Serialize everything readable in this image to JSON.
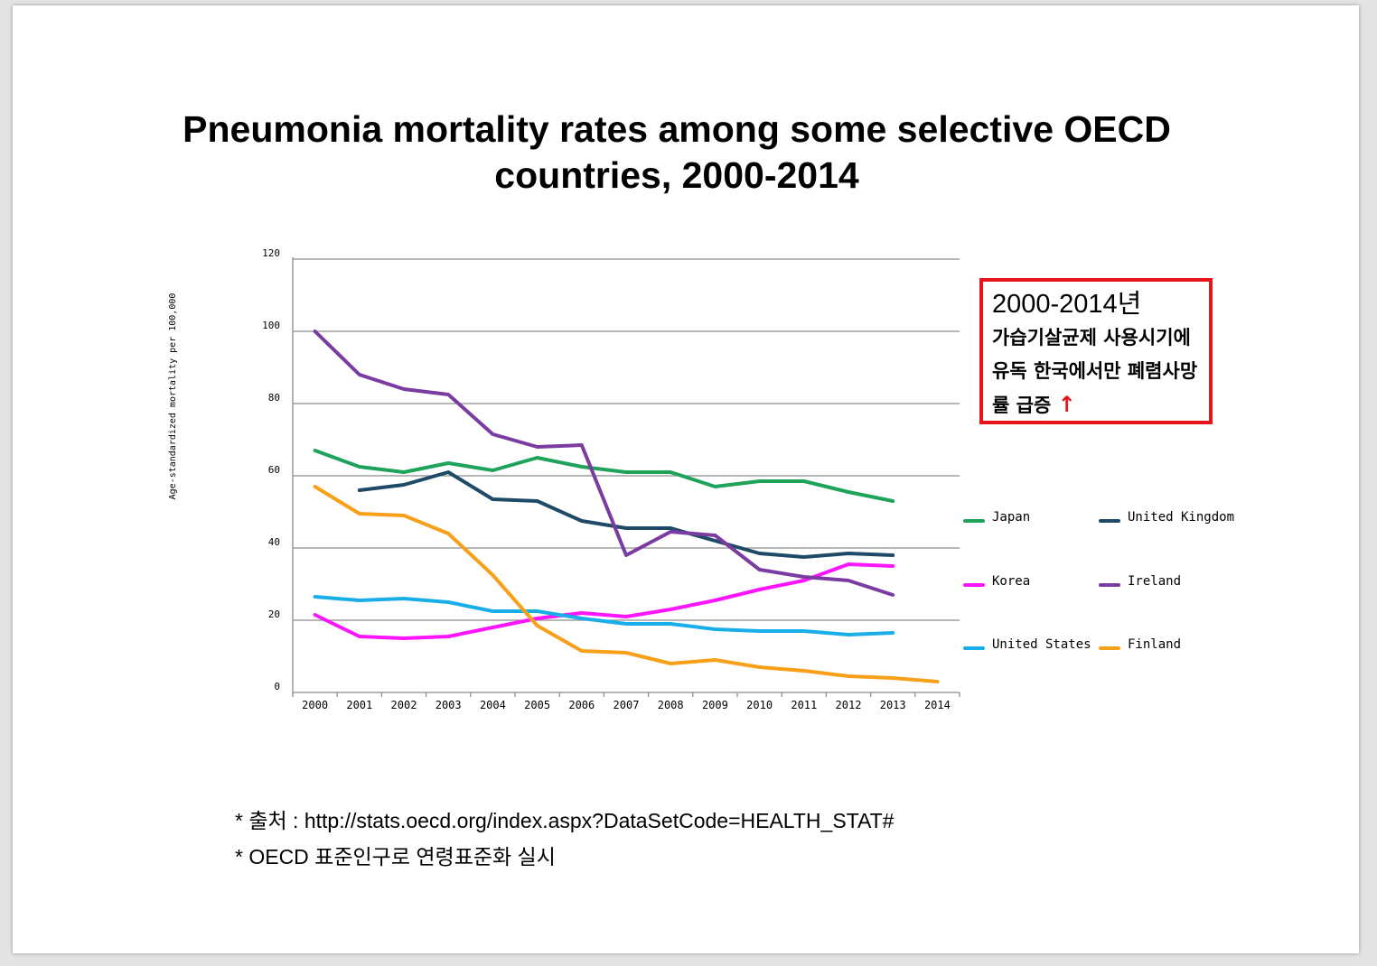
{
  "title_line1": "Pneumonia mortality rates among some selective OECD",
  "title_line2": "countries, 2000-2014",
  "annotation": {
    "year": "2000-2014년",
    "body": "가습기살균제 사용시기에 유독 한국에서만 폐렴사망률 급증",
    "arrow": "↑",
    "border_color": "#e8141b"
  },
  "footnotes": {
    "source": "* 출처 : http://stats.oecd.org/index.aspx?DataSetCode=HEALTH_STAT#",
    "note": "* OECD 표준인구로 연령표준화 실시"
  },
  "chart_data": {
    "type": "line",
    "ylabel": "Age-standardized mortality per 100,000",
    "xlabel": "",
    "x": [
      "2000",
      "2001",
      "2002",
      "2003",
      "2004",
      "2005",
      "2006",
      "2007",
      "2008",
      "2009",
      "2010",
      "2011",
      "2012",
      "2013",
      "2014"
    ],
    "yticks": [
      0,
      20,
      40,
      60,
      80,
      100,
      120
    ],
    "ylim": [
      0,
      120
    ],
    "grid": true,
    "legend_position": "right",
    "series": [
      {
        "name": "Japan",
        "color": "#1fa35a",
        "values": [
          67,
          62.5,
          61,
          63.5,
          61.5,
          65,
          62.5,
          61,
          61,
          57,
          58.5,
          58.5,
          55.5,
          53,
          null
        ]
      },
      {
        "name": "United Kingdom",
        "color": "#1e4a68",
        "values": [
          null,
          56,
          57.5,
          61,
          53.5,
          53,
          47.5,
          45.5,
          45.5,
          42,
          38.5,
          37.5,
          38.5,
          38,
          null
        ]
      },
      {
        "name": "Korea",
        "color": "#ff14ff",
        "values": [
          21.5,
          15.5,
          15,
          15.5,
          18,
          20.5,
          22,
          21,
          23,
          25.5,
          28.5,
          31,
          35.5,
          35,
          null
        ]
      },
      {
        "name": "Ireland",
        "color": "#7a3ca0",
        "values": [
          100,
          88,
          84,
          82.5,
          71.5,
          68,
          68.5,
          38,
          44.5,
          43.5,
          34,
          32,
          31,
          27,
          null
        ]
      },
      {
        "name": "United States",
        "color": "#19aee8",
        "values": [
          26.5,
          25.5,
          26,
          25,
          22.5,
          22.5,
          20.5,
          19,
          19,
          17.5,
          17,
          17,
          16,
          16.5,
          null
        ]
      },
      {
        "name": "Finland",
        "color": "#f8a01a",
        "values": [
          57,
          49.5,
          49,
          44,
          32.5,
          18.5,
          11.5,
          11,
          8,
          9,
          7,
          6,
          4.5,
          4,
          3
        ]
      }
    ]
  }
}
